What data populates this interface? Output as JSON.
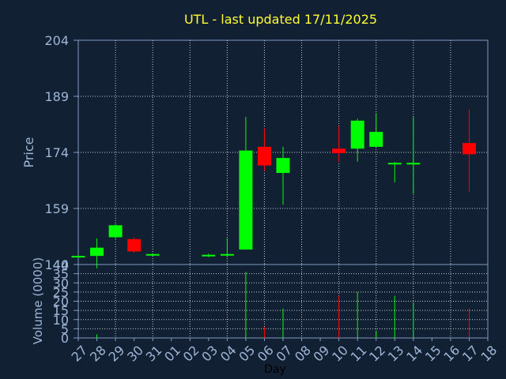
{
  "chart_data": [
    {
      "type": "candlestick",
      "title": "UTL - last updated 17/11/2025",
      "ylabel": "Price",
      "ylim": [
        144,
        204
      ],
      "yticks": [
        204,
        189,
        174,
        159,
        144
      ],
      "grid": true,
      "candles": [
        {
          "x": 0,
          "open": 146,
          "close": 146.3,
          "high": 146.5,
          "low": 145.8
        },
        {
          "x": 1,
          "open": 146.3,
          "close": 148.5,
          "high": 151,
          "low": 143
        },
        {
          "x": 2,
          "open": 151.3,
          "close": 154.5,
          "high": 154.8,
          "low": 151
        },
        {
          "x": 3,
          "open": 150.8,
          "close": 147.5,
          "high": 151.2,
          "low": 147.2
        },
        {
          "x": 4,
          "open": 146.5,
          "close": 146.8,
          "high": 147,
          "low": 146.3
        },
        {
          "x": 7,
          "open": 146.3,
          "close": 146.6,
          "high": 146.9,
          "low": 146
        },
        {
          "x": 8,
          "open": 146.4,
          "close": 146.8,
          "high": 151,
          "low": 146
        },
        {
          "x": 9,
          "open": 148,
          "close": 174.5,
          "high": 183.5,
          "low": 148
        },
        {
          "x": 10,
          "open": 175.5,
          "close": 170.5,
          "high": 180.5,
          "low": 169
        },
        {
          "x": 11,
          "open": 168.5,
          "close": 172.5,
          "high": 175.5,
          "low": 160
        },
        {
          "x": 14,
          "open": 175,
          "close": 173.8,
          "high": 181,
          "low": 171.5
        },
        {
          "x": 15,
          "open": 175,
          "close": 182.5,
          "high": 183,
          "low": 171.5
        },
        {
          "x": 16,
          "open": 175.5,
          "close": 179.5,
          "high": 184.5,
          "low": 175.5
        },
        {
          "x": 17,
          "open": 170.8,
          "close": 171.2,
          "high": 171.4,
          "low": 166
        },
        {
          "x": 18,
          "open": 170.8,
          "close": 171.2,
          "high": 183.5,
          "low": 163
        },
        {
          "x": 21,
          "open": 176.5,
          "close": 173.5,
          "high": 185.5,
          "low": 163.5
        }
      ],
      "colors": {
        "up": "#00ff00",
        "down": "#ff0000",
        "grid": "#c8ccd4",
        "axis": "#7f9bbd",
        "title": "#ffff33",
        "tick": "#9fb6d6",
        "bg": "#112032"
      }
    },
    {
      "type": "bar",
      "ylabel": "Volume (0000)",
      "xlabel": "Day",
      "ylim": [
        0,
        40
      ],
      "yticks": [
        35,
        30,
        25,
        20,
        15,
        10,
        5,
        0
      ],
      "categories": [
        "27",
        "28",
        "29",
        "30",
        "31",
        "01",
        "02",
        "03",
        "04",
        "05",
        "06",
        "07",
        "08",
        "09",
        "10",
        "11",
        "12",
        "13",
        "14",
        "15",
        "16",
        "17",
        "18"
      ],
      "values": [
        0,
        2,
        0,
        0,
        0,
        0,
        0,
        0,
        0,
        36,
        6,
        16,
        0,
        0,
        23,
        25,
        4,
        23,
        19,
        0,
        0,
        16,
        0
      ],
      "bar_colors": [
        "#00ff00",
        "#00ff00",
        "#00ff00",
        "#ff0000",
        "#00ff00",
        "#00ff00",
        "#00ff00",
        "#00ff00",
        "#00ff00",
        "#00ff00",
        "#ff0000",
        "#00ff00",
        "#00ff00",
        "#00ff00",
        "#ff0000",
        "#00ff00",
        "#00ff00",
        "#00ff00",
        "#00ff00",
        "#00ff00",
        "#00ff00",
        "#ff0000",
        "#00ff00"
      ]
    }
  ]
}
